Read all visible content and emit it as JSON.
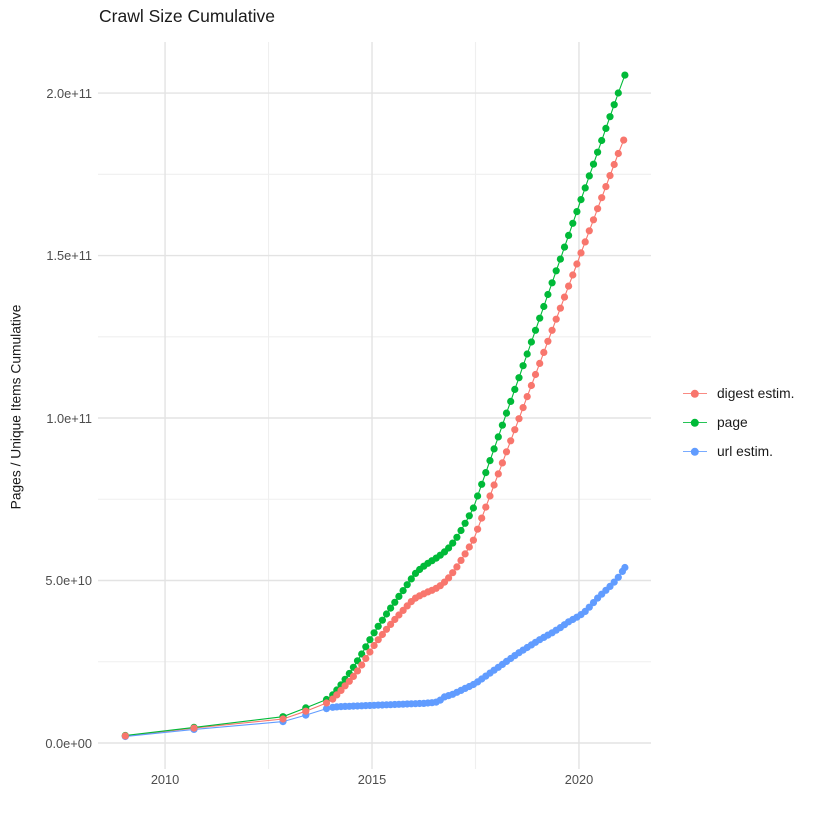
{
  "title": "Crawl Size Cumulative",
  "chart_data": {
    "type": "scatter",
    "title": "Crawl Size Cumulative",
    "xlabel": "",
    "ylabel": "Pages / Unique Items Cumulative",
    "value_unit": "counts; values stored in billions (1e9)",
    "grid": true,
    "legend_position": "right",
    "xlim": [
      2008.38,
      2021.74
    ],
    "ylim_e9": [
      -8,
      215.7
    ],
    "x_ticks": [
      {
        "v": 2010,
        "label": "2010"
      },
      {
        "v": 2015,
        "label": "2015"
      },
      {
        "v": 2020,
        "label": "2020"
      }
    ],
    "x_minor": [
      2012.5,
      2017.5
    ],
    "y_ticks": [
      {
        "v": 0,
        "label": "0.0e+00"
      },
      {
        "v": 50,
        "label": "5.0e+10"
      },
      {
        "v": 100,
        "label": "1.0e+11"
      },
      {
        "v": 150,
        "label": "1.5e+11"
      },
      {
        "v": 200,
        "label": "2.0e+11"
      }
    ],
    "y_minor": [
      25,
      75,
      125,
      175
    ],
    "series": [
      {
        "name": "digest estim.",
        "color": "#F8766D",
        "points": [
          [
            2009.04,
            2.2
          ],
          [
            2010.7,
            4.6
          ],
          [
            2012.85,
            7.4
          ],
          [
            2013.4,
            9.8
          ],
          [
            2013.9,
            12.3
          ],
          [
            2014.05,
            13.5
          ],
          [
            2014.15,
            14.8
          ],
          [
            2014.25,
            16.2
          ],
          [
            2014.35,
            17.6
          ],
          [
            2014.45,
            19.0
          ],
          [
            2014.55,
            20.5
          ],
          [
            2014.65,
            22.2
          ],
          [
            2014.75,
            24.0
          ],
          [
            2014.85,
            26.0
          ],
          [
            2014.95,
            28.0
          ],
          [
            2015.05,
            30.0
          ],
          [
            2015.15,
            31.8
          ],
          [
            2015.25,
            33.4
          ],
          [
            2015.35,
            35.0
          ],
          [
            2015.45,
            36.5
          ],
          [
            2015.55,
            38.0
          ],
          [
            2015.65,
            39.4
          ],
          [
            2015.75,
            40.8
          ],
          [
            2015.85,
            42.2
          ],
          [
            2015.95,
            43.5
          ],
          [
            2016.05,
            44.6
          ],
          [
            2016.15,
            45.3
          ],
          [
            2016.25,
            45.9
          ],
          [
            2016.35,
            46.5
          ],
          [
            2016.45,
            47.0
          ],
          [
            2016.55,
            47.6
          ],
          [
            2016.65,
            48.4
          ],
          [
            2016.75,
            49.5
          ],
          [
            2016.85,
            50.8
          ],
          [
            2016.95,
            52.4
          ],
          [
            2017.05,
            54.2
          ],
          [
            2017.15,
            56.2
          ],
          [
            2017.25,
            58.2
          ],
          [
            2017.35,
            60.3
          ],
          [
            2017.45,
            62.4
          ],
          [
            2017.55,
            65.8
          ],
          [
            2017.65,
            69.2
          ],
          [
            2017.75,
            72.6
          ],
          [
            2017.85,
            76.0
          ],
          [
            2017.95,
            79.4
          ],
          [
            2018.05,
            82.8
          ],
          [
            2018.15,
            86.2
          ],
          [
            2018.25,
            89.6
          ],
          [
            2018.35,
            93.0
          ],
          [
            2018.45,
            96.4
          ],
          [
            2018.55,
            99.8
          ],
          [
            2018.65,
            103.2
          ],
          [
            2018.75,
            106.6
          ],
          [
            2018.85,
            110.0
          ],
          [
            2018.95,
            113.4
          ],
          [
            2019.05,
            116.8
          ],
          [
            2019.15,
            120.2
          ],
          [
            2019.25,
            123.6
          ],
          [
            2019.35,
            127.0
          ],
          [
            2019.45,
            130.4
          ],
          [
            2019.55,
            133.8
          ],
          [
            2019.65,
            137.2
          ],
          [
            2019.75,
            140.6
          ],
          [
            2019.85,
            144.0
          ],
          [
            2019.95,
            147.4
          ],
          [
            2020.05,
            150.8
          ],
          [
            2020.15,
            154.2
          ],
          [
            2020.25,
            157.6
          ],
          [
            2020.35,
            161.0
          ],
          [
            2020.45,
            164.4
          ],
          [
            2020.55,
            167.8
          ],
          [
            2020.65,
            171.2
          ],
          [
            2020.75,
            174.6
          ],
          [
            2020.85,
            178.0
          ],
          [
            2020.95,
            181.4
          ],
          [
            2021.08,
            185.5
          ]
        ]
      },
      {
        "name": "page",
        "color": "#00BA38",
        "points": [
          [
            2009.04,
            2.3
          ],
          [
            2010.7,
            4.8
          ],
          [
            2012.85,
            8.1
          ],
          [
            2013.4,
            10.8
          ],
          [
            2013.9,
            13.4
          ],
          [
            2014.05,
            14.8
          ],
          [
            2014.15,
            16.3
          ],
          [
            2014.25,
            17.9
          ],
          [
            2014.35,
            19.6
          ],
          [
            2014.45,
            21.4
          ],
          [
            2014.55,
            23.3
          ],
          [
            2014.65,
            25.3
          ],
          [
            2014.75,
            27.4
          ],
          [
            2014.85,
            29.6
          ],
          [
            2014.95,
            31.8
          ],
          [
            2015.05,
            33.9
          ],
          [
            2015.15,
            35.9
          ],
          [
            2015.25,
            37.8
          ],
          [
            2015.35,
            39.7
          ],
          [
            2015.45,
            41.5
          ],
          [
            2015.55,
            43.3
          ],
          [
            2015.65,
            45.1
          ],
          [
            2015.75,
            46.9
          ],
          [
            2015.85,
            48.7
          ],
          [
            2015.95,
            50.5
          ],
          [
            2016.05,
            52.2
          ],
          [
            2016.15,
            53.4
          ],
          [
            2016.25,
            54.4
          ],
          [
            2016.35,
            55.3
          ],
          [
            2016.45,
            56.1
          ],
          [
            2016.55,
            56.9
          ],
          [
            2016.65,
            57.8
          ],
          [
            2016.75,
            58.8
          ],
          [
            2016.85,
            60.0
          ],
          [
            2016.95,
            61.5
          ],
          [
            2017.05,
            63.3
          ],
          [
            2017.15,
            65.4
          ],
          [
            2017.25,
            67.6
          ],
          [
            2017.35,
            69.9
          ],
          [
            2017.45,
            72.3
          ],
          [
            2017.55,
            76.0
          ],
          [
            2017.65,
            79.6
          ],
          [
            2017.75,
            83.2
          ],
          [
            2017.85,
            86.9
          ],
          [
            2017.95,
            90.5
          ],
          [
            2018.05,
            94.2
          ],
          [
            2018.15,
            97.8
          ],
          [
            2018.25,
            101.5
          ],
          [
            2018.35,
            105.1
          ],
          [
            2018.45,
            108.8
          ],
          [
            2018.55,
            112.4
          ],
          [
            2018.65,
            116.1
          ],
          [
            2018.75,
            119.7
          ],
          [
            2018.85,
            123.4
          ],
          [
            2018.95,
            127.0
          ],
          [
            2019.05,
            130.7
          ],
          [
            2019.15,
            134.3
          ],
          [
            2019.25,
            138.0
          ],
          [
            2019.35,
            141.6
          ],
          [
            2019.45,
            145.3
          ],
          [
            2019.55,
            148.9
          ],
          [
            2019.65,
            152.6
          ],
          [
            2019.75,
            156.2
          ],
          [
            2019.85,
            159.9
          ],
          [
            2019.95,
            163.5
          ],
          [
            2020.05,
            167.2
          ],
          [
            2020.15,
            170.8
          ],
          [
            2020.25,
            174.5
          ],
          [
            2020.35,
            178.1
          ],
          [
            2020.45,
            181.8
          ],
          [
            2020.55,
            185.4
          ],
          [
            2020.65,
            189.1
          ],
          [
            2020.75,
            192.7
          ],
          [
            2020.85,
            196.4
          ],
          [
            2020.95,
            200.0
          ],
          [
            2021.11,
            205.5
          ]
        ]
      },
      {
        "name": "url estim.",
        "color": "#619CFF",
        "points": [
          [
            2009.04,
            2.0
          ],
          [
            2010.7,
            4.2
          ],
          [
            2012.85,
            6.6
          ],
          [
            2013.4,
            8.6
          ],
          [
            2013.9,
            10.6
          ],
          [
            2014.05,
            11.0
          ],
          [
            2014.15,
            11.1
          ],
          [
            2014.25,
            11.2
          ],
          [
            2014.35,
            11.25
          ],
          [
            2014.45,
            11.3
          ],
          [
            2014.55,
            11.35
          ],
          [
            2014.65,
            11.4
          ],
          [
            2014.75,
            11.45
          ],
          [
            2014.85,
            11.5
          ],
          [
            2014.95,
            11.55
          ],
          [
            2015.05,
            11.6
          ],
          [
            2015.15,
            11.65
          ],
          [
            2015.25,
            11.7
          ],
          [
            2015.35,
            11.75
          ],
          [
            2015.45,
            11.8
          ],
          [
            2015.55,
            11.85
          ],
          [
            2015.65,
            11.9
          ],
          [
            2015.75,
            11.95
          ],
          [
            2015.85,
            12.0
          ],
          [
            2015.95,
            12.05
          ],
          [
            2016.05,
            12.1
          ],
          [
            2016.15,
            12.15
          ],
          [
            2016.25,
            12.2
          ],
          [
            2016.35,
            12.3
          ],
          [
            2016.45,
            12.4
          ],
          [
            2016.55,
            12.6
          ],
          [
            2016.65,
            13.2
          ],
          [
            2016.75,
            14.2
          ],
          [
            2016.85,
            14.6
          ],
          [
            2016.95,
            15.0
          ],
          [
            2017.05,
            15.6
          ],
          [
            2017.15,
            16.2
          ],
          [
            2017.25,
            16.8
          ],
          [
            2017.35,
            17.4
          ],
          [
            2017.45,
            18.0
          ],
          [
            2017.55,
            18.8
          ],
          [
            2017.65,
            19.7
          ],
          [
            2017.75,
            20.6
          ],
          [
            2017.85,
            21.5
          ],
          [
            2017.95,
            22.4
          ],
          [
            2018.05,
            23.3
          ],
          [
            2018.15,
            24.2
          ],
          [
            2018.25,
            25.1
          ],
          [
            2018.35,
            26.0
          ],
          [
            2018.45,
            26.9
          ],
          [
            2018.55,
            27.8
          ],
          [
            2018.65,
            28.6
          ],
          [
            2018.75,
            29.4
          ],
          [
            2018.85,
            30.2
          ],
          [
            2018.95,
            31.0
          ],
          [
            2019.05,
            31.8
          ],
          [
            2019.15,
            32.5
          ],
          [
            2019.25,
            33.2
          ],
          [
            2019.35,
            33.9
          ],
          [
            2019.45,
            34.7
          ],
          [
            2019.55,
            35.5
          ],
          [
            2019.65,
            36.4
          ],
          [
            2019.75,
            37.3
          ],
          [
            2019.85,
            38.0
          ],
          [
            2019.95,
            38.7
          ],
          [
            2020.05,
            39.5
          ],
          [
            2020.15,
            40.5
          ],
          [
            2020.25,
            41.8
          ],
          [
            2020.35,
            43.2
          ],
          [
            2020.45,
            44.6
          ],
          [
            2020.55,
            45.8
          ],
          [
            2020.65,
            47.0
          ],
          [
            2020.75,
            48.2
          ],
          [
            2020.85,
            49.5
          ],
          [
            2020.95,
            51.0
          ],
          [
            2021.05,
            52.8
          ],
          [
            2021.11,
            54.0
          ]
        ]
      }
    ],
    "colors": {
      "grid_major": "#e3e3e3",
      "grid_minor": "#efefef",
      "axis_text": "#4d4d4d",
      "text": "#1a1a1a",
      "background": "#ffffff"
    }
  }
}
